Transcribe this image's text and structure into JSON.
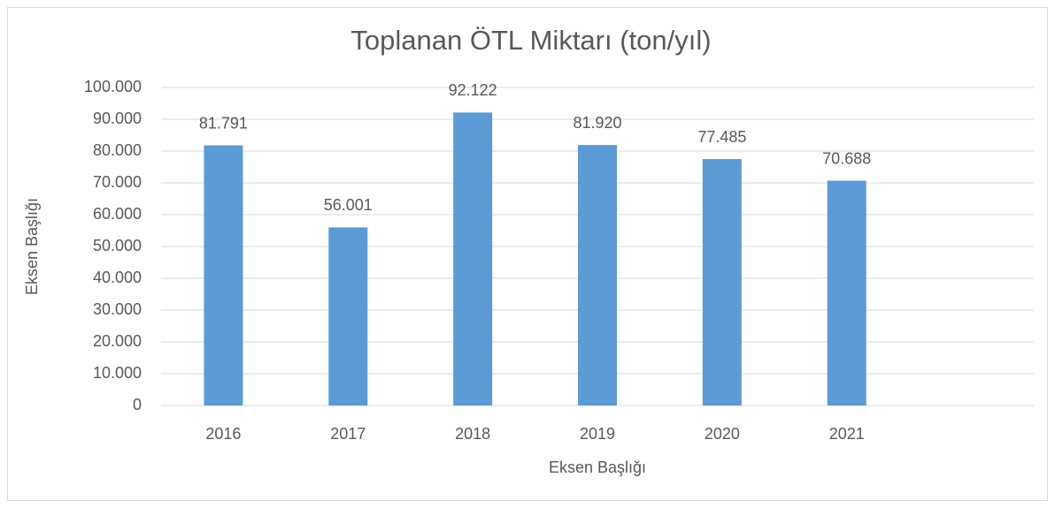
{
  "chart_data": {
    "type": "bar",
    "title": "Toplanan ÖTL Miktarı (ton/yıl)",
    "x_label": "Eksen Başlığı",
    "y_label": "Eksen Başlığı",
    "categories": [
      "2016",
      "2017",
      "2018",
      "2019",
      "2020",
      "2021",
      null
    ],
    "values": [
      81791,
      56001,
      92122,
      81920,
      77485,
      70688,
      null
    ],
    "value_labels": [
      "81.791",
      "56.001",
      "92.122",
      "81.920",
      "77.485",
      "70.688",
      null
    ],
    "color": "#5b9bd5",
    "ylim": [
      0,
      100000
    ],
    "yticks": [
      0,
      {
        "value": 10000,
        "label": "10.000"
      },
      {
        "value": 20000,
        "label": "20.000"
      },
      {
        "value": 30000,
        "label": "30.000"
      },
      {
        "value": 40000,
        "label": "40.000"
      },
      {
        "value": 50000,
        "label": "50.000"
      },
      {
        "value": 60000,
        "label": "60.000"
      },
      {
        "value": 70000,
        "label": "70.000"
      },
      {
        "value": 80000,
        "label": "80.000"
      },
      {
        "value": 90000,
        "label": "90.000"
      },
      {
        "value": 100000,
        "label": "100.000"
      }
    ],
    "grid": true
  }
}
